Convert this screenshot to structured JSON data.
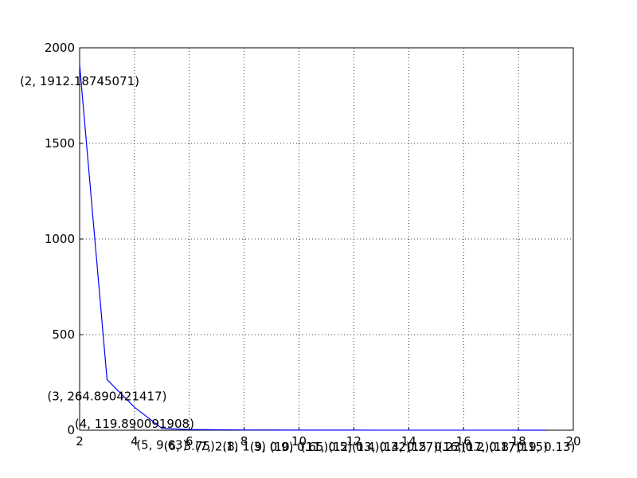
{
  "chart_data": {
    "type": "line",
    "x": [
      2,
      3,
      4,
      5,
      6,
      7,
      8,
      9,
      10,
      11,
      12,
      13,
      14,
      15,
      16,
      17,
      18,
      19
    ],
    "series": [
      {
        "color": "#0000ff",
        "values": [
          1912.18745071,
          264.890421417,
          119.890091908,
          9.63,
          3.75,
          2.1,
          1.3,
          0.9,
          0.65,
          0.5,
          0.4,
          0.32,
          0.27,
          0.23,
          0.2,
          0.17,
          0.15,
          0.13
        ]
      }
    ],
    "annotations": [
      "(2, 1912.18745071)",
      "(3, 264.890421417)",
      "(4, 119.890091908)",
      "(5, 9.63)",
      "(6, 3.75)",
      "(7, 2.1)",
      "(8, 1.3)",
      "(9, 0.9)",
      "(10, 0.65)",
      "(11, 0.5)",
      "(12, 0.4)",
      "(13, 0.32)",
      "(14, 0.27)",
      "(15, 0.23)",
      "(16, 0.2)",
      "(17, 0.17)",
      "(18, 0.15)",
      "(19, 0.13)"
    ],
    "xlim": [
      2,
      20
    ],
    "xticks": [
      2,
      4,
      6,
      8,
      10,
      12,
      14,
      16,
      18,
      20
    ],
    "ylim": [
      0,
      2000
    ],
    "yticks": [
      0,
      500,
      1000,
      1500,
      2000
    ],
    "grid": true
  }
}
